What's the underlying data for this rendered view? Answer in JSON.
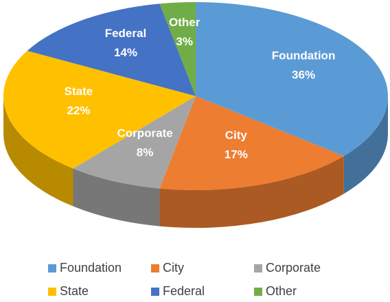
{
  "chart_data": {
    "type": "pie3d",
    "categories": [
      "Foundation",
      "City",
      "Corporate",
      "State",
      "Federal",
      "Other"
    ],
    "values": [
      36,
      17,
      8,
      22,
      14,
      3
    ],
    "value_labels": [
      "36%",
      "17%",
      "8%",
      "22%",
      "14%",
      "3%"
    ],
    "colors": [
      "#5b9bd5",
      "#ed7d31",
      "#a5a5a5",
      "#ffc000",
      "#4472c4",
      "#70ad47"
    ],
    "legend": "bottom"
  }
}
